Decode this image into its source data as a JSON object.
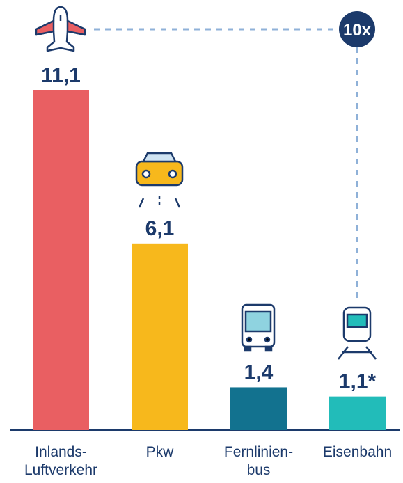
{
  "chart_data": {
    "type": "bar",
    "categories": [
      "Inlands-\nLuftverkehr",
      "Pkw",
      "Fernlinien-\nbus",
      "Eisenbahn"
    ],
    "values": [
      11.1,
      6.1,
      1.4,
      1.1
    ],
    "value_labels": [
      "11,1",
      "6,1",
      "1,4",
      "1,1*"
    ],
    "colors": [
      "#e95f62",
      "#f7b81c",
      "#12728f",
      "#22bcb9"
    ],
    "annotation": "10x"
  }
}
